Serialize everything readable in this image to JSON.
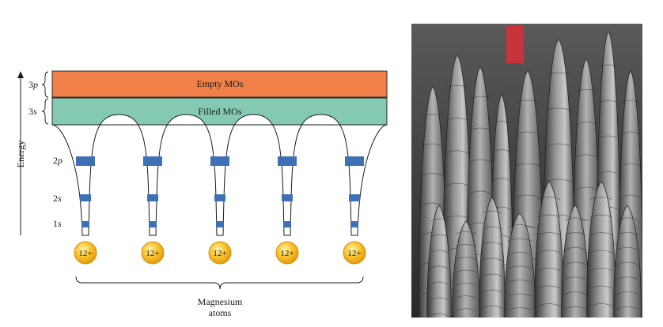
{
  "diagram": {
    "band_empty_label": "Empty MOs",
    "band_filled_label": "Filled MOs",
    "axis_label": "Energy",
    "orbital_3p": "3",
    "orbital_3p_sub": "p",
    "orbital_3s": "3",
    "orbital_3s_sub": "s",
    "orbital_2p": "2",
    "orbital_2p_sub": "p",
    "orbital_2s": "2",
    "orbital_2s_sub": "s",
    "orbital_1s": "1",
    "orbital_1s_sub": "s",
    "nucleus_label": "12+",
    "nuclei_count": 5,
    "bracket_label_line1": "Magnesium",
    "bracket_label_line2": "atoms",
    "colors": {
      "empty_band": "#f08048",
      "filled_band": "#84c9b4",
      "orbital_level": "#3d70b5",
      "nucleus": "#f7c22a"
    }
  },
  "photo": {
    "description_icon": "magnesium-crystals-photo"
  }
}
